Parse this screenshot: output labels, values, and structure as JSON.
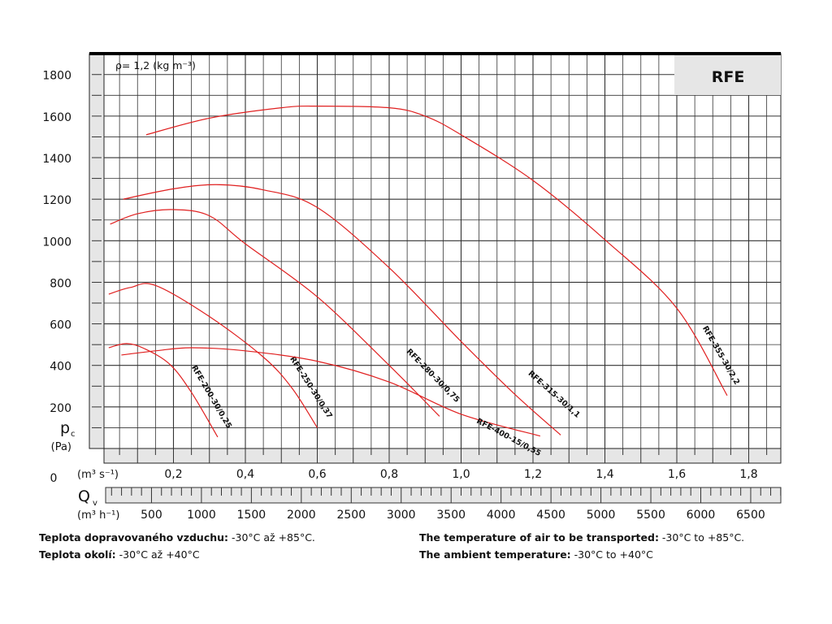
{
  "chart_data": {
    "type": "line",
    "title": "RFE",
    "annotation": "ρ= 1,2 (kg m⁻³)",
    "ylabel": "pc",
    "yunit": "(Pa)",
    "xlabel": "Qv",
    "xunit_top": "(m³ s⁻¹)",
    "xunit_bottom": "(m³ h⁻¹)",
    "xlim": [
      0,
      1.89
    ],
    "ylim": [
      0,
      1900
    ],
    "grid": true,
    "yticks": [
      0,
      200,
      400,
      600,
      800,
      1000,
      1200,
      1400,
      1600,
      1800
    ],
    "yticklabels": [
      "0",
      "200",
      "400",
      "600",
      "800",
      "1000",
      "1200",
      "1400",
      "1600",
      "1800"
    ],
    "xticks": [
      0.2,
      0.4,
      0.6,
      0.8,
      1.0,
      1.2,
      1.4,
      1.6,
      1.8
    ],
    "xticklabels": [
      "0,2",
      "0,4",
      "0,6",
      "0,8",
      "1,0",
      "1,2",
      "1,4",
      "1,6",
      "1,8"
    ],
    "x2ticks": [
      500,
      1000,
      1500,
      2000,
      2500,
      3000,
      3500,
      4000,
      4500,
      5000,
      5500,
      6000,
      6500
    ],
    "series": [
      {
        "name": "RFE-200-30/0,25",
        "x": [
          0.02,
          0.07,
          0.12,
          0.19,
          0.25,
          0.323
        ],
        "y": [
          485,
          505,
          480,
          405,
          270,
          55
        ]
      },
      {
        "name": "RFE-250-30/0,37",
        "x": [
          0.02,
          0.08,
          0.15,
          0.3,
          0.45,
          0.53,
          0.6
        ],
        "y": [
          743,
          775,
          785,
          635,
          440,
          290,
          100
        ]
      },
      {
        "name": "RFE-280-30/0,75",
        "x": [
          0.024,
          0.1,
          0.2,
          0.3,
          0.4,
          0.6,
          0.8,
          0.94
        ],
        "y": [
          1080,
          1130,
          1150,
          1120,
          985,
          730,
          400,
          155
        ]
      },
      {
        "name": "RFE-315-30/1,1",
        "x": [
          0.06,
          0.2,
          0.32,
          0.45,
          0.6,
          0.8,
          1.0,
          1.15,
          1.277
        ],
        "y": [
          1200,
          1250,
          1270,
          1245,
          1160,
          870,
          515,
          260,
          65
        ]
      },
      {
        "name": "RFE-355-30/2,2",
        "x": [
          0.124,
          0.3,
          0.5,
          0.6,
          0.8,
          0.9,
          1.0,
          1.2,
          1.4,
          1.6,
          1.74
        ],
        "y": [
          1510,
          1590,
          1640,
          1648,
          1640,
          1600,
          1510,
          1290,
          1005,
          675,
          255
        ]
      },
      {
        "name": "RFE-400-15/0,55",
        "x": [
          0.055,
          0.15,
          0.25,
          0.4,
          0.6,
          0.8,
          1.0,
          1.22
        ],
        "y": [
          450,
          470,
          485,
          470,
          420,
          320,
          165,
          60
        ]
      }
    ],
    "series_color": "#e02020"
  },
  "footer": {
    "cz1_label": "Teplota dopravovaného vzduchu:",
    "cz1_value": " -30°C až +85°C.",
    "cz2_label": "Teplota okolí:",
    "cz2_value": " -30°C až +40°C",
    "en1_label": "The temperature of air to be transported:",
    "en1_value": " -30°C to +85°C.",
    "en2_label": "The ambient temperature:",
    "en2_value": " -30°C to +40°C"
  }
}
